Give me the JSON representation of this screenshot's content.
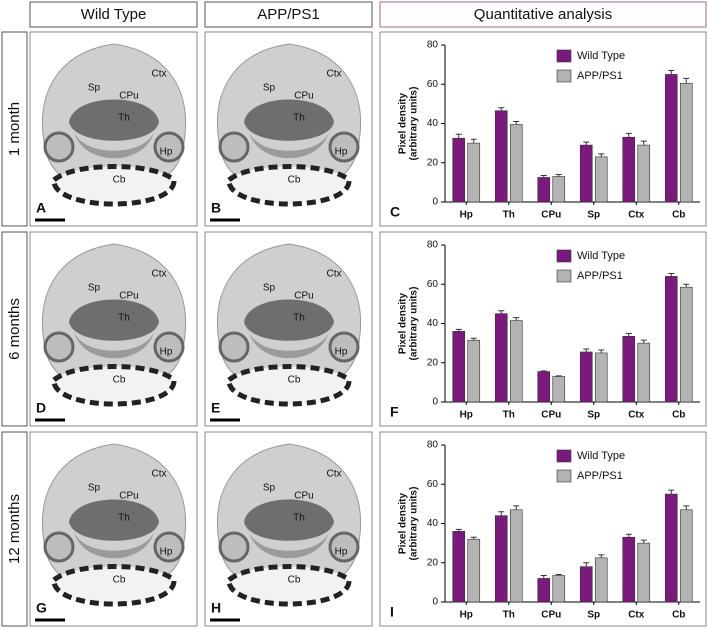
{
  "headers": [
    "Wild Type",
    "APP/PS1",
    "Quantitative analysis"
  ],
  "rows": [
    {
      "label": "1 month",
      "panels": [
        "A",
        "B",
        "C"
      ]
    },
    {
      "label": "6 months",
      "panels": [
        "D",
        "E",
        "F"
      ]
    },
    {
      "label": "12 months",
      "panels": [
        "G",
        "H",
        "I"
      ]
    }
  ],
  "image_labels": [
    "Ctx",
    "Sp",
    "CPu",
    "Th",
    "Hp",
    "Cb"
  ],
  "chart_data": [
    {
      "type": "bar",
      "ylabel": [
        "Pixel density",
        "(arbitrary units)"
      ],
      "categories": [
        "Hp",
        "Th",
        "CPu",
        "Sp",
        "Ctx",
        "Cb"
      ],
      "series": [
        {
          "name": "Wild Type",
          "color": "#7a1a7c",
          "values": [
            32.5,
            46.5,
            12.5,
            29,
            33,
            65
          ],
          "errors": [
            2,
            1.5,
            1,
            1.5,
            2,
            2
          ]
        },
        {
          "name": "APP/PS1",
          "color": "#b3b3b3",
          "values": [
            30,
            39.5,
            13,
            23,
            29,
            60.5
          ],
          "errors": [
            2,
            1.5,
            1,
            1.5,
            2,
            2.5
          ]
        }
      ],
      "ylim": [
        0,
        80
      ],
      "yticks": [
        0,
        20,
        40,
        60,
        80
      ],
      "legend": "top-right"
    },
    {
      "type": "bar",
      "ylabel": [
        "Pixel density",
        "(arbitrary units)"
      ],
      "categories": [
        "Hp",
        "Th",
        "CPu",
        "Sp",
        "Ctx",
        "Cb"
      ],
      "series": [
        {
          "name": "Wild Type",
          "color": "#7a1a7c",
          "values": [
            36,
            45,
            15.5,
            25.5,
            33.5,
            64
          ],
          "errors": [
            1,
            1.5,
            0.3,
            1.5,
            1.5,
            1.5
          ]
        },
        {
          "name": "APP/PS1",
          "color": "#b3b3b3",
          "values": [
            31.5,
            41.5,
            13,
            25,
            30,
            58.5
          ],
          "errors": [
            1,
            1.5,
            0.3,
            1.5,
            1.5,
            1.5
          ]
        }
      ],
      "ylim": [
        0,
        80
      ],
      "yticks": [
        0,
        20,
        40,
        60,
        80
      ],
      "legend": "top-right"
    },
    {
      "type": "bar",
      "ylabel": [
        "Pixel density",
        "(arbitrary units)"
      ],
      "categories": [
        "Hp",
        "Th",
        "CPu",
        "Sp",
        "Ctx",
        "Cb"
      ],
      "series": [
        {
          "name": "Wild Type",
          "color": "#7a1a7c",
          "values": [
            36,
            44,
            12,
            18,
            33,
            55
          ],
          "errors": [
            1,
            2,
            1.5,
            2,
            1.5,
            2
          ]
        },
        {
          "name": "APP/PS1",
          "color": "#b3b3b3",
          "values": [
            32,
            47,
            13.5,
            22.5,
            30,
            47
          ],
          "errors": [
            1,
            2,
            0.5,
            1.5,
            1.5,
            2
          ]
        }
      ],
      "ylim": [
        0,
        80
      ],
      "yticks": [
        0,
        20,
        40,
        60,
        80
      ],
      "legend": "top-right"
    }
  ]
}
